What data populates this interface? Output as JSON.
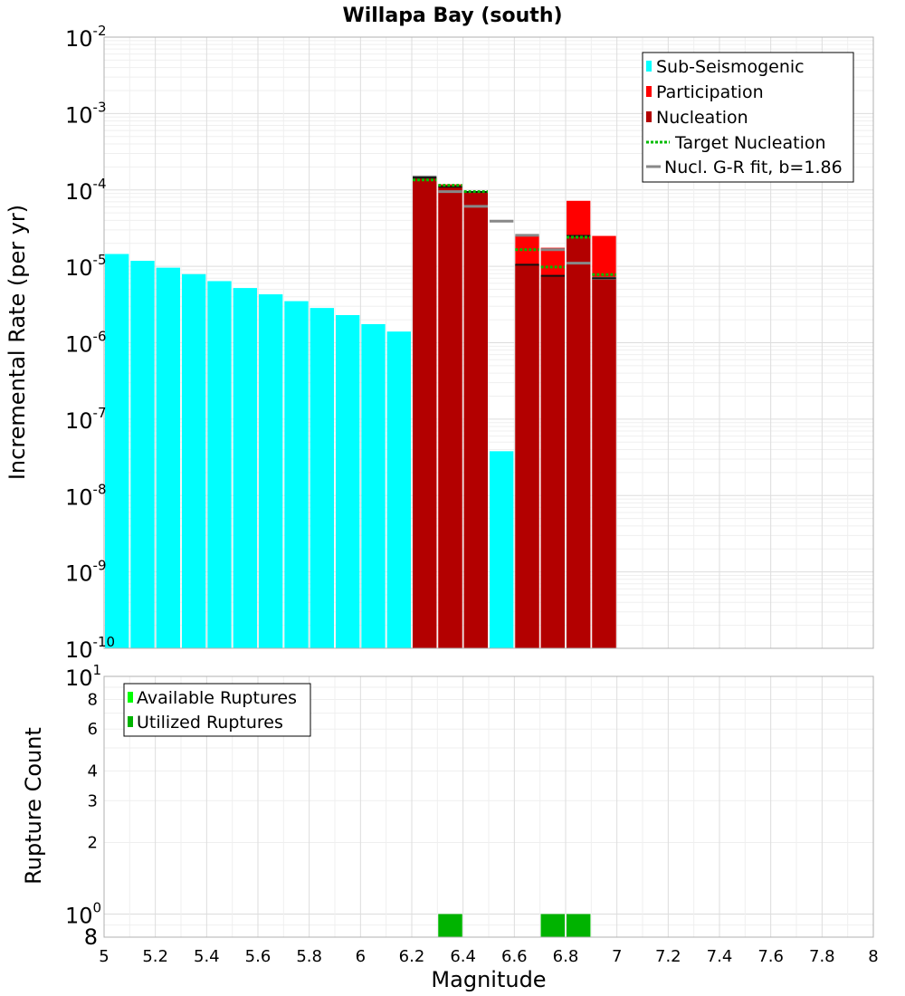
{
  "chart_data": [
    {
      "type": "bar",
      "title": "Willapa Bay (south)",
      "xlabel": "",
      "ylabel": "Incremental Rate (per yr)",
      "yscale": "log",
      "xlim": [
        5,
        8
      ],
      "ylim": [
        1e-10,
        0.01
      ],
      "grid": true,
      "bin_width": 0.1,
      "legend_position": "top-right",
      "legend": {
        "sub_seismogenic": "Sub-Seismogenic",
        "participation": "Participation",
        "nucleation": "Nucleation",
        "target_nucleation": "Target Nucleation",
        "gr_fit": "Nucl. G-R fit, b=1.86"
      },
      "y_ticks": [
        {
          "base": "10",
          "exp": "-10"
        },
        {
          "base": "10",
          "exp": "-9"
        },
        {
          "base": "10",
          "exp": "-8"
        },
        {
          "base": "10",
          "exp": "-7"
        },
        {
          "base": "10",
          "exp": "-6"
        },
        {
          "base": "10",
          "exp": "-5"
        },
        {
          "base": "10",
          "exp": "-4"
        },
        {
          "base": "10",
          "exp": "-3"
        },
        {
          "base": "10",
          "exp": "-2"
        }
      ],
      "series": [
        {
          "name": "Sub-Seismogenic",
          "color": "#00ffff",
          "x": [
            5.05,
            5.15,
            5.25,
            5.35,
            5.45,
            5.55,
            5.65,
            5.75,
            5.85,
            5.95,
            6.05,
            6.15,
            6.55
          ],
          "values": [
            1.45e-05,
            1.18e-05,
            9.6e-06,
            7.9e-06,
            6.4e-06,
            5.2e-06,
            4.3e-06,
            3.5e-06,
            2.85e-06,
            2.3e-06,
            1.75e-06,
            1.4e-06,
            3.8e-08
          ]
        },
        {
          "name": "Participation",
          "color": "#ff0000",
          "x": [
            6.25,
            6.35,
            6.45,
            6.65,
            6.75,
            6.85,
            6.95
          ],
          "values": [
            0.000145,
            0.000118,
            9.6e-05,
            2.5e-05,
            1.75e-05,
            7.2e-05,
            2.5e-05
          ]
        },
        {
          "name": "Nucleation",
          "color": "#b30000",
          "x": [
            6.25,
            6.35,
            6.45,
            6.65,
            6.75,
            6.85,
            6.95
          ],
          "values": [
            0.000145,
            0.00011,
            9.4e-05,
            1.05e-05,
            7.5e-06,
            2.5e-05,
            7e-06
          ]
        },
        {
          "name": "Target Nucleation",
          "color": "#00bb00",
          "x": [
            6.25,
            6.35,
            6.45,
            6.65,
            6.75,
            6.85,
            6.95
          ],
          "values": [
            0.000135,
            0.000115,
            9.5e-05,
            1.65e-05,
            9.8e-06,
            2.4e-05,
            7.8e-06
          ]
        },
        {
          "name": "Nucl. G-R fit, b=1.86",
          "color": "#888888",
          "x": [
            6.25,
            6.35,
            6.45,
            6.55,
            6.65,
            6.75,
            6.85,
            6.95
          ],
          "values": [
            0.000148,
            9.5e-05,
            6.1e-05,
            3.9e-05,
            2.55e-05,
            1.65e-05,
            1.1e-05,
            7e-06
          ]
        }
      ]
    },
    {
      "type": "bar",
      "title": "",
      "xlabel": "Magnitude",
      "ylabel": "Rupture Count",
      "yscale": "log",
      "xlim": [
        5,
        8
      ],
      "ylim": [
        0.8,
        10
      ],
      "grid": true,
      "bin_width": 0.1,
      "legend_position": "top-left",
      "legend": {
        "available": "Available Ruptures",
        "utilized": "Utilized Ruptures"
      },
      "x_ticks": [
        "5",
        "5.2",
        "5.4",
        "5.6",
        "5.8",
        "6",
        "6.2",
        "6.4",
        "6.6",
        "6.8",
        "7",
        "7.2",
        "7.4",
        "7.6",
        "7.8",
        "8"
      ],
      "y_minor_ticks": [
        {
          "value": 8,
          "label": "8"
        },
        {
          "value": 6,
          "label": "6"
        },
        {
          "value": 4,
          "label": "4"
        },
        {
          "value": 3,
          "label": "3"
        },
        {
          "value": 2,
          "label": "2"
        }
      ],
      "y_major_ticks": [
        {
          "value": 10,
          "base": "10",
          "exp": "1"
        },
        {
          "value": 1,
          "base": "10",
          "exp": "0"
        }
      ],
      "y_bottom_label": {
        "value": 0.8,
        "label": "8"
      },
      "series": [
        {
          "name": "Available Ruptures",
          "color": "#00ff00",
          "x": [
            6.35,
            6.75,
            6.85
          ],
          "values": [
            1,
            1,
            1
          ]
        },
        {
          "name": "Utilized Ruptures",
          "color": "#00b300",
          "x": [
            6.35,
            6.75,
            6.85
          ],
          "values": [
            1,
            1,
            1
          ]
        }
      ]
    }
  ]
}
